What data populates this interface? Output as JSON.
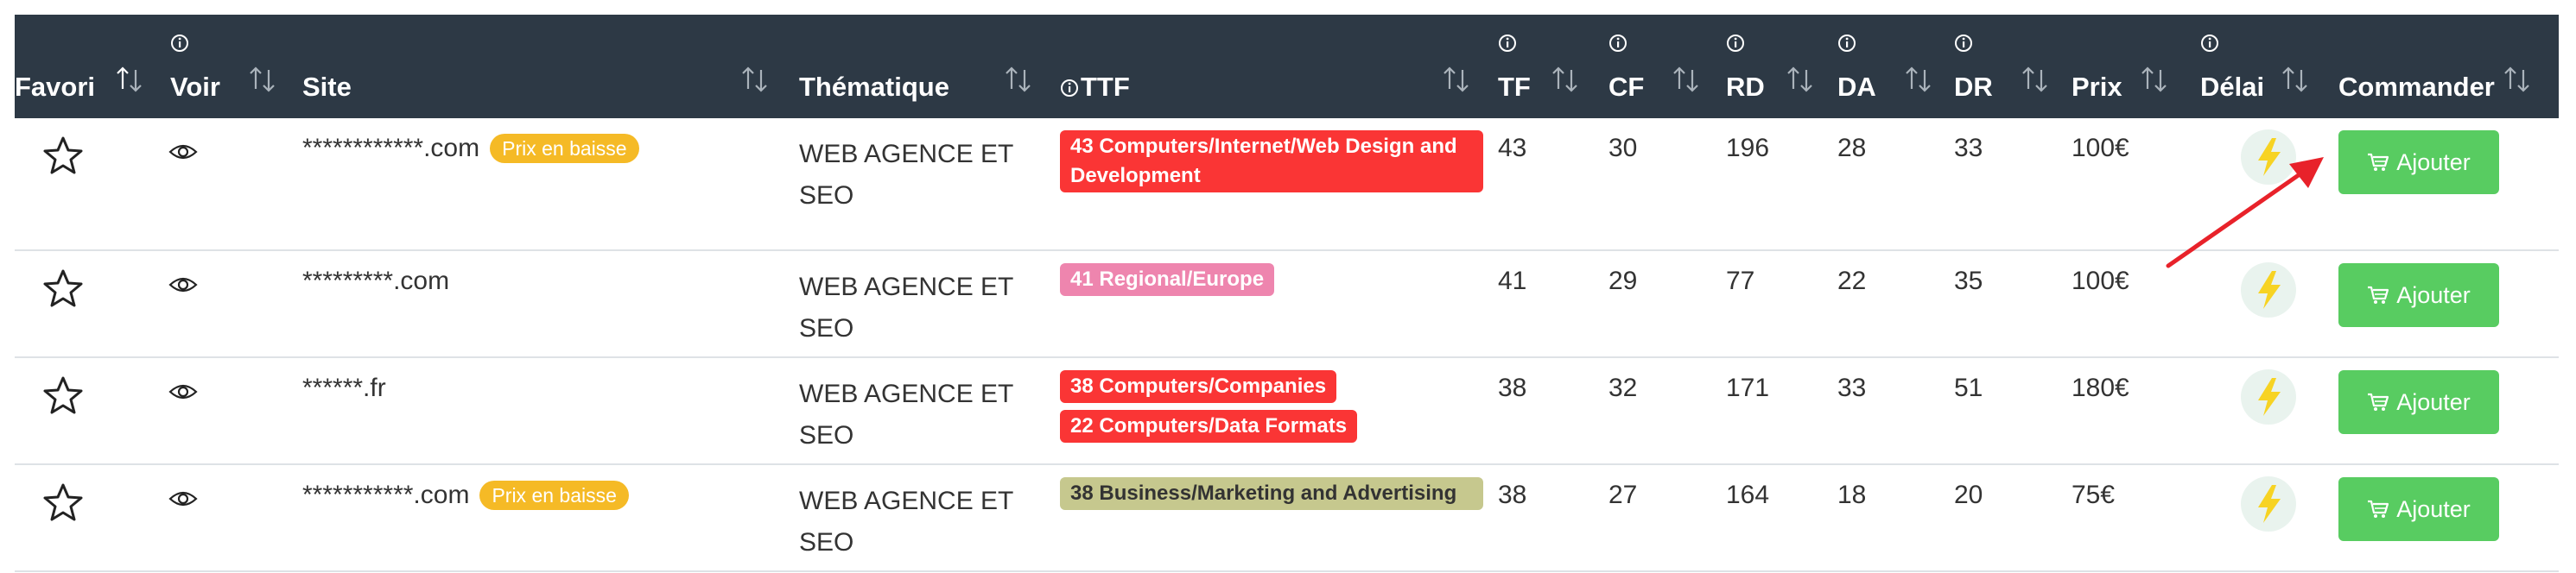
{
  "columns": [
    {
      "key": "favori",
      "label": "Favori",
      "info": false
    },
    {
      "key": "voir",
      "label": "Voir",
      "info": true
    },
    {
      "key": "site",
      "label": "Site",
      "info": false
    },
    {
      "key": "thematique",
      "label": "Thématique",
      "info": false
    },
    {
      "key": "ttf",
      "label": "TTF",
      "info": true
    },
    {
      "key": "tf",
      "label": "TF",
      "info": true
    },
    {
      "key": "cf",
      "label": "CF",
      "info": true
    },
    {
      "key": "rd",
      "label": "RD",
      "info": true
    },
    {
      "key": "da",
      "label": "DA",
      "info": true
    },
    {
      "key": "dr",
      "label": "DR",
      "info": true
    },
    {
      "key": "prix",
      "label": "Prix",
      "info": false
    },
    {
      "key": "delai",
      "label": "Délai",
      "info": true
    },
    {
      "key": "commander",
      "label": "Commander",
      "info": false
    }
  ],
  "rows": [
    {
      "site": "************.com",
      "badge": "Prix en baisse",
      "thematique": "WEB AGENCE ET\nSEO",
      "ttf": [
        {
          "label": "43 Computers/Internet/Web Design and Development",
          "color": "#fa3535",
          "full": true
        }
      ],
      "tf": "43",
      "cf": "30",
      "rd": "196",
      "da": "28",
      "dr": "33",
      "prix": "100€",
      "button": "Ajouter"
    },
    {
      "site": "*********.com",
      "badge": "",
      "thematique": "WEB AGENCE ET\nSEO",
      "ttf": [
        {
          "label": "41 Regional/Europe",
          "color": "#ee85ae",
          "full": false
        }
      ],
      "tf": "41",
      "cf": "29",
      "rd": "77",
      "da": "22",
      "dr": "35",
      "prix": "100€",
      "button": "Ajouter"
    },
    {
      "site": "******.fr",
      "badge": "",
      "thematique": "WEB AGENCE ET\nSEO",
      "ttf": [
        {
          "label": "38 Computers/Companies",
          "color": "#fa3535",
          "full": false
        },
        {
          "label": "22 Computers/Data Formats",
          "color": "#fa3535",
          "full": false
        }
      ],
      "tf": "38",
      "cf": "32",
      "rd": "171",
      "da": "33",
      "dr": "51",
      "prix": "180€",
      "button": "Ajouter"
    },
    {
      "site": "***********.com",
      "badge": "Prix en baisse",
      "thematique": "WEB AGENCE ET\nSEO",
      "ttf": [
        {
          "label": "38 Business/Marketing and Advertising",
          "color": "#c6c88e",
          "full": true,
          "textColor": "#333333"
        }
      ],
      "tf": "38",
      "cf": "27",
      "rd": "164",
      "da": "18",
      "dr": "20",
      "prix": "75€",
      "button": "Ajouter"
    }
  ],
  "colors": {
    "header_bg": "#2d3945",
    "button": "#58cc61",
    "badge": "#f5ba26",
    "annotation_arrow": "#e8222a"
  },
  "icons": [
    "star-icon",
    "eye-icon",
    "info-icon",
    "sort-icon",
    "bolt-icon",
    "cart-icon",
    "arrow-annotation"
  ]
}
